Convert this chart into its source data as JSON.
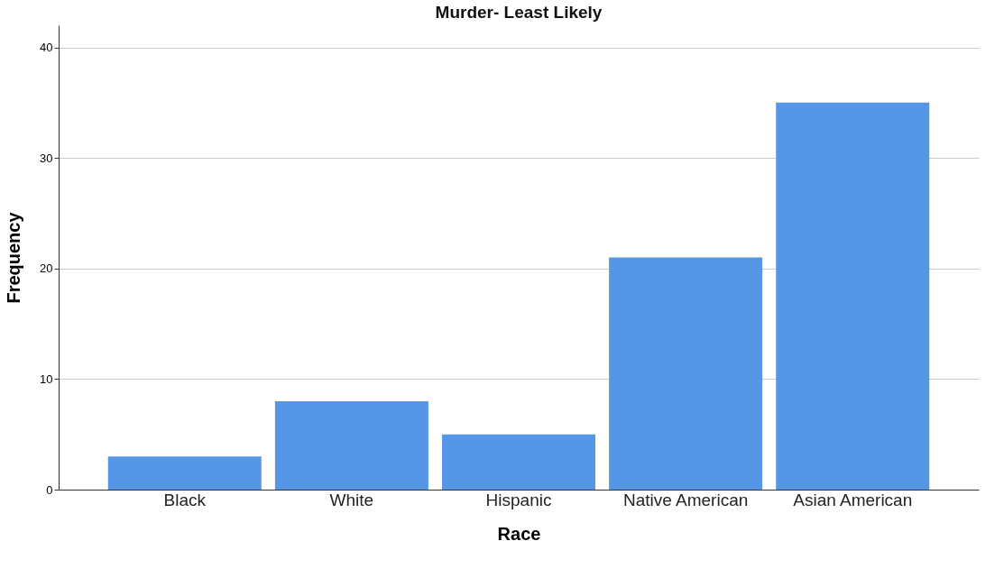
{
  "chart_data": {
    "type": "bar",
    "title": "Murder- Least Likely",
    "xlabel": "Race",
    "ylabel": "Frequency",
    "categories": [
      "Black",
      "White",
      "Hispanic",
      "Native American",
      "Asian American"
    ],
    "values": [
      3,
      8,
      5,
      21,
      35
    ],
    "color": "#5596e6",
    "ylim": [
      0,
      42
    ],
    "yticks": [
      0,
      10,
      20,
      30,
      40
    ],
    "grid": "y"
  }
}
